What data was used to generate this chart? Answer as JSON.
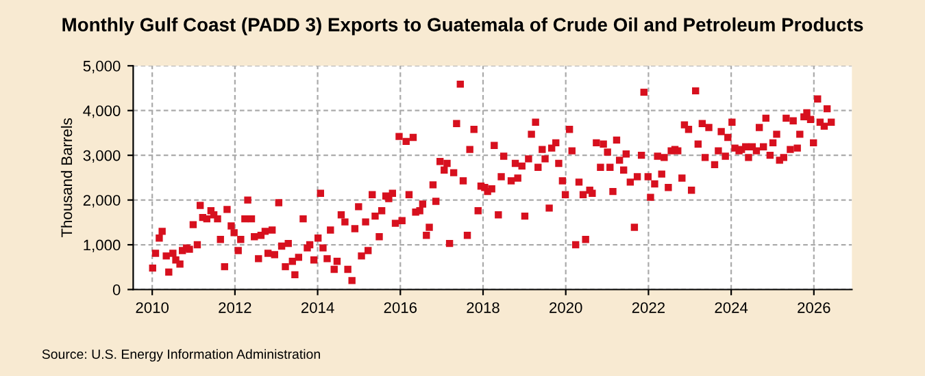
{
  "chart_data": {
    "type": "scatter",
    "title": "Monthly Gulf Coast (PADD 3) Exports to Guatemala of Crude Oil and Petroleum Products",
    "ylabel": "Thousand Barrels",
    "annotations": [
      "Source: U.S. Energy Information Administration"
    ],
    "marker": "square",
    "grid": true,
    "xlim": [
      2009.54,
      2026.92
    ],
    "xticks": [
      2010,
      2012,
      2014,
      2016,
      2018,
      2020,
      2022,
      2024,
      2026
    ],
    "ylim": [
      0,
      5000
    ],
    "yticks": [
      0,
      {
        "value": 1000,
        "label": "1,000"
      },
      {
        "value": 2000,
        "label": "2,000"
      },
      {
        "value": 3000,
        "label": "3,000"
      },
      {
        "value": 4000,
        "label": "4,000"
      },
      {
        "value": 5000,
        "label": "5,000"
      }
    ],
    "series": [
      {
        "color": "#d7101e",
        "x": [
          2010.01,
          2010.08,
          2010.17,
          2010.24,
          2010.34,
          2010.4,
          2010.5,
          2010.57,
          2010.67,
          2010.73,
          2010.83,
          2010.9,
          2010.99,
          2011.09,
          2011.16,
          2011.22,
          2011.32,
          2011.42,
          2011.49,
          2011.58,
          2011.65,
          2011.75,
          2011.81,
          2011.91,
          2011.98,
          2012.08,
          2012.14,
          2012.24,
          2012.31,
          2012.4,
          2012.47,
          2012.57,
          2012.63,
          2012.73,
          2012.8,
          2012.9,
          2012.96,
          2013.06,
          2013.13,
          2013.22,
          2013.29,
          2013.39,
          2013.45,
          2013.54,
          2013.65,
          2013.75,
          2013.81,
          2013.91,
          2014.01,
          2014.07,
          2014.13,
          2014.23,
          2014.31,
          2014.4,
          2014.47,
          2014.57,
          2014.66,
          2014.73,
          2014.83,
          2014.9,
          2014.99,
          2015.06,
          2015.16,
          2015.22,
          2015.32,
          2015.39,
          2015.49,
          2015.55,
          2015.65,
          2015.72,
          2015.81,
          2015.88,
          2015.97,
          2016.04,
          2016.14,
          2016.21,
          2016.31,
          2016.37,
          2016.47,
          2016.54,
          2016.63,
          2016.7,
          2016.79,
          2016.86,
          2016.96,
          2017.06,
          2017.13,
          2017.19,
          2017.29,
          2017.36,
          2017.45,
          2017.52,
          2017.62,
          2017.68,
          2017.78,
          2017.88,
          2017.95,
          2018.04,
          2018.11,
          2018.21,
          2018.27,
          2018.37,
          2018.44,
          2018.5,
          2018.68,
          2018.78,
          2018.84,
          2018.94,
          2019.01,
          2019.1,
          2019.17,
          2019.27,
          2019.33,
          2019.43,
          2019.5,
          2019.6,
          2019.66,
          2019.76,
          2019.83,
          2019.92,
          2019.99,
          2020.09,
          2020.15,
          2020.24,
          2020.32,
          2020.42,
          2020.48,
          2020.58,
          2020.64,
          2020.74,
          2020.84,
          2020.91,
          2021.01,
          2021.07,
          2021.14,
          2021.23,
          2021.3,
          2021.4,
          2021.46,
          2021.56,
          2021.66,
          2021.73,
          2021.83,
          2021.89,
          2021.99,
          2022.05,
          2022.15,
          2022.22,
          2022.32,
          2022.38,
          2022.48,
          2022.55,
          2022.64,
          2022.71,
          2022.81,
          2022.87,
          2022.97,
          2023.04,
          2023.14,
          2023.2,
          2023.3,
          2023.37,
          2023.46,
          2023.6,
          2023.69,
          2023.76,
          2023.86,
          2023.92,
          2024.02,
          2024.09,
          2024.19,
          2024.25,
          2024.35,
          2024.42,
          2024.51,
          2024.61,
          2024.68,
          2024.78,
          2024.84,
          2024.94,
          2025.01,
          2025.1,
          2025.17,
          2025.27,
          2025.33,
          2025.43,
          2025.5,
          2025.6,
          2025.66,
          2025.76,
          2025.83,
          2025.92,
          2025.99,
          2026.09,
          2026.15,
          2026.25,
          2026.32,
          2026.42
        ],
        "values": [
          480,
          810,
          1150,
          1300,
          750,
          390,
          810,
          660,
          570,
          870,
          930,
          900,
          1450,
          1000,
          1880,
          1610,
          1580,
          1760,
          1670,
          1580,
          1120,
          510,
          1790,
          1420,
          1270,
          870,
          1120,
          1580,
          2000,
          1580,
          1180,
          690,
          1210,
          1300,
          810,
          1330,
          780,
          1940,
          970,
          510,
          1030,
          630,
          330,
          720,
          1580,
          930,
          1000,
          660,
          1150,
          2150,
          930,
          690,
          1330,
          450,
          630,
          1670,
          1510,
          450,
          200,
          1360,
          1850,
          750,
          1510,
          870,
          2120,
          1640,
          1180,
          1760,
          2090,
          2030,
          2150,
          1480,
          3420,
          1540,
          3310,
          2120,
          3400,
          1730,
          1760,
          1910,
          1210,
          1390,
          2340,
          1970,
          2860,
          2670,
          2820,
          1030,
          2610,
          3710,
          4590,
          2430,
          1210,
          3130,
          3580,
          1760,
          2310,
          2280,
          2190,
          2250,
          3220,
          1670,
          2520,
          2980,
          2430,
          2820,
          2490,
          2760,
          1640,
          2920,
          3470,
          3740,
          2730,
          3130,
          2920,
          1820,
          3160,
          3280,
          2820,
          2430,
          2120,
          3580,
          3100,
          1000,
          2400,
          2120,
          1120,
          2220,
          2150,
          3280,
          2730,
          3250,
          3070,
          2730,
          2190,
          3340,
          2890,
          2670,
          3030,
          2400,
          1390,
          2520,
          3000,
          4410,
          2520,
          2060,
          2360,
          2980,
          2580,
          2950,
          2280,
          3100,
          3130,
          3100,
          2490,
          3680,
          3580,
          2220,
          4440,
          3250,
          3710,
          2950,
          3620,
          2790,
          3100,
          3530,
          2980,
          3400,
          3740,
          3160,
          3100,
          3130,
          3190,
          2950,
          3190,
          3100,
          3620,
          3190,
          3830,
          3000,
          3280,
          3470,
          2890,
          2950,
          3830,
          3130,
          3770,
          3160,
          3470,
          3860,
          3950,
          3800,
          3280,
          4260,
          3740,
          3650,
          4040,
          3740
        ]
      }
    ]
  }
}
